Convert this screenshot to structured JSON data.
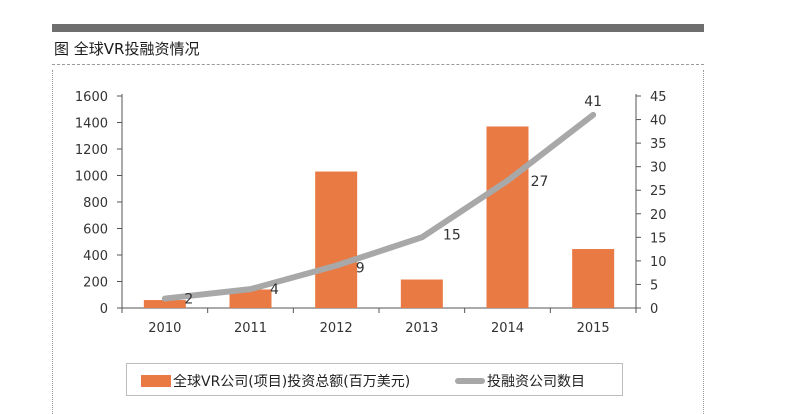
{
  "figure": {
    "title": "图 全球VR投融资情况"
  },
  "colors": {
    "bar": "#e97a43",
    "line": "#a8a8a8",
    "axis": "#555555"
  },
  "chart_data": {
    "type": "bar",
    "title": "",
    "categories": [
      "2010",
      "2011",
      "2012",
      "2013",
      "2014",
      "2015"
    ],
    "series": [
      {
        "name": "全球VR公司(项目)投资总额(百万美元)",
        "type": "bar",
        "axis": "left",
        "values": [
          60,
          140,
          1030,
          215,
          1370,
          445
        ]
      },
      {
        "name": "投融资公司数目",
        "type": "line",
        "axis": "right",
        "values": [
          2,
          4,
          9,
          15,
          27,
          41
        ],
        "labels": [
          "2",
          "4",
          "9",
          "15",
          "27",
          "41"
        ]
      }
    ],
    "y_left": {
      "ylim": [
        0,
        1600
      ],
      "ticks": [
        "0",
        "200",
        "400",
        "600",
        "800",
        "1000",
        "1200",
        "1400",
        "1600"
      ]
    },
    "y_right": {
      "ylim": [
        0,
        45
      ],
      "ticks": [
        "0",
        "5",
        "10",
        "15",
        "20",
        "25",
        "30",
        "35",
        "40",
        "45"
      ]
    },
    "xlabel": "",
    "ylabel": "",
    "grid": false,
    "legend": "bottom"
  }
}
